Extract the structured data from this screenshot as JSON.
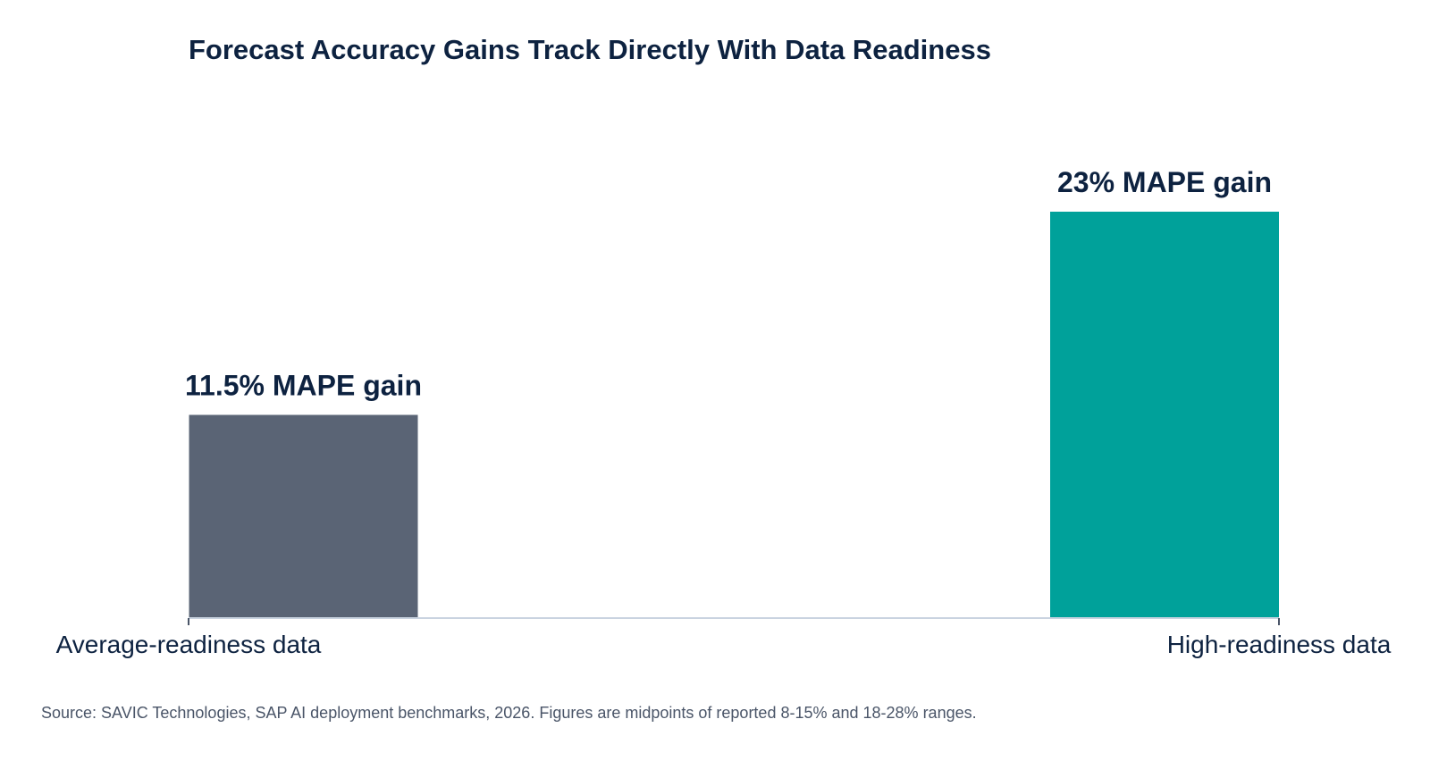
{
  "chart_data": {
    "type": "bar",
    "title": "Forecast Accuracy Gains Track Directly With Data Readiness",
    "categories": [
      "Average-readiness data",
      "High-readiness data"
    ],
    "values": [
      11.5,
      23
    ],
    "data_labels": [
      "11.5% MAPE gain",
      "23% MAPE gain"
    ],
    "colors": [
      "#5a6475",
      "#00a19a"
    ],
    "ylim": [
      0,
      25
    ],
    "grid": false,
    "legend": "none",
    "source": "Source: SAVIC Technologies, SAP AI deployment benchmarks, 2026. Figures are midpoints of reported 8-15% and 18-28% ranges."
  },
  "colors": {
    "title_text": "#0d2240",
    "axis_line": "#c9d3e0",
    "source_text": "#4a5568"
  }
}
